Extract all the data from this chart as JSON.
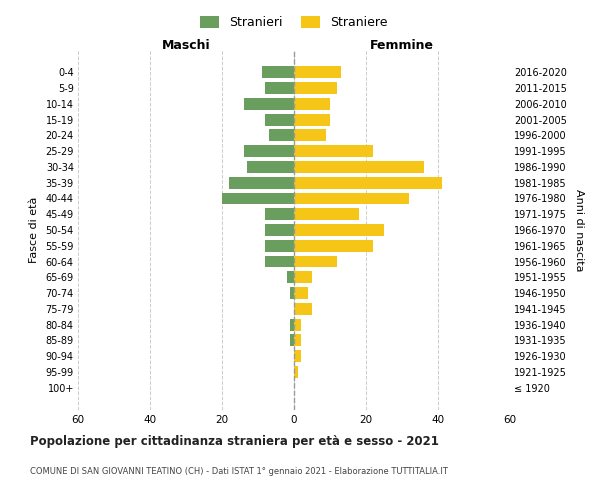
{
  "age_groups": [
    "100+",
    "95-99",
    "90-94",
    "85-89",
    "80-84",
    "75-79",
    "70-74",
    "65-69",
    "60-64",
    "55-59",
    "50-54",
    "45-49",
    "40-44",
    "35-39",
    "30-34",
    "25-29",
    "20-24",
    "15-19",
    "10-14",
    "5-9",
    "0-4"
  ],
  "birth_years": [
    "≤ 1920",
    "1921-1925",
    "1926-1930",
    "1931-1935",
    "1936-1940",
    "1941-1945",
    "1946-1950",
    "1951-1955",
    "1956-1960",
    "1961-1965",
    "1966-1970",
    "1971-1975",
    "1976-1980",
    "1981-1985",
    "1986-1990",
    "1991-1995",
    "1996-2000",
    "2001-2005",
    "2006-2010",
    "2011-2015",
    "2016-2020"
  ],
  "stranieri": [
    0,
    0,
    0,
    1,
    1,
    0,
    1,
    2,
    8,
    8,
    8,
    8,
    20,
    18,
    13,
    14,
    7,
    8,
    14,
    8,
    9
  ],
  "straniere": [
    0,
    1,
    2,
    2,
    2,
    5,
    4,
    5,
    12,
    22,
    25,
    18,
    32,
    41,
    36,
    22,
    9,
    10,
    10,
    12,
    13
  ],
  "stranieri_color": "#6a9e5e",
  "straniere_color": "#f5c518",
  "title": "Popolazione per cittadinanza straniera per età e sesso - 2021",
  "subtitle": "COMUNE DI SAN GIOVANNI TEATINO (CH) - Dati ISTAT 1° gennaio 2021 - Elaborazione TUTTITALIA.IT",
  "xlabel_left": "Maschi",
  "xlabel_right": "Femmine",
  "ylabel_left": "Fasce di età",
  "ylabel_right": "Anni di nascita",
  "xlim": 60,
  "background_color": "#ffffff",
  "grid_color": "#cccccc",
  "legend_stranieri": "Stranieri",
  "legend_straniere": "Straniere"
}
